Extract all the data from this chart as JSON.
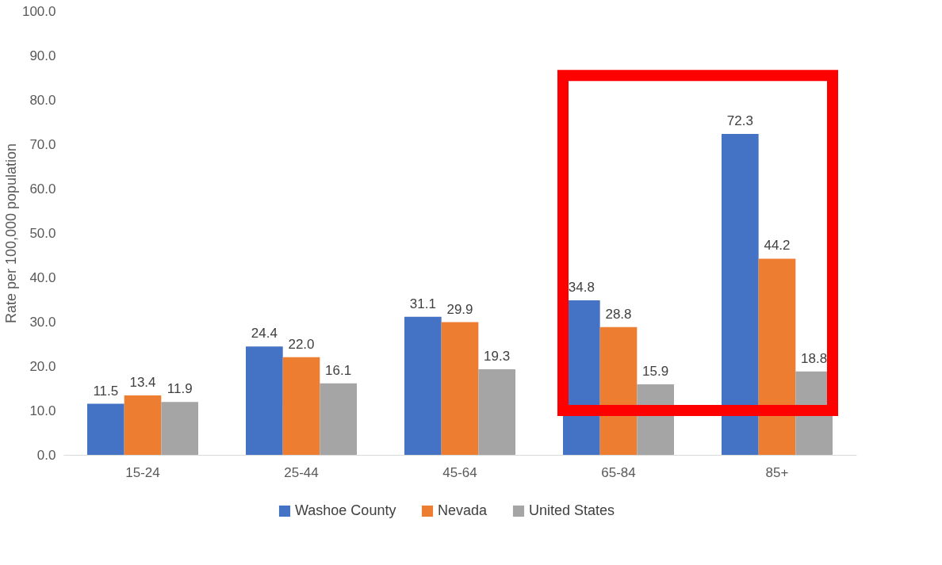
{
  "chart_data": {
    "type": "bar",
    "ylabel": "Rate per 100,000 population",
    "categories": [
      "15-24",
      "25-44",
      "45-64",
      "65-84",
      "85+"
    ],
    "series": [
      {
        "name": "Washoe County",
        "color": "#4472c4",
        "values": [
          11.5,
          24.4,
          31.1,
          34.8,
          72.3
        ]
      },
      {
        "name": "Nevada",
        "color": "#ed7d31",
        "values": [
          13.4,
          22.0,
          29.9,
          28.8,
          44.2
        ]
      },
      {
        "name": "United States",
        "color": "#a5a5a5",
        "values": [
          11.9,
          16.1,
          19.3,
          15.9,
          18.8
        ]
      }
    ],
    "ylim": [
      0,
      100
    ],
    "yticks": [
      {
        "value": 0,
        "label": "0.0"
      },
      {
        "value": 10,
        "label": "10.0"
      },
      {
        "value": 20,
        "label": "20.0"
      },
      {
        "value": 30,
        "label": "30.0"
      },
      {
        "value": 40,
        "label": "40.0"
      },
      {
        "value": 50,
        "label": "50.0"
      },
      {
        "value": 60,
        "label": "60.0"
      },
      {
        "value": 70,
        "label": "70.0"
      },
      {
        "value": 80,
        "label": "80.0"
      },
      {
        "value": 90,
        "label": "90.0"
      },
      {
        "value": 100,
        "label": "100.0"
      }
    ],
    "value_labels": [
      [
        "11.5",
        "24.4",
        "31.1",
        "34.8",
        "72.3"
      ],
      [
        "13.4",
        "22.0",
        "29.9",
        "28.8",
        "44.2"
      ],
      [
        "11.9",
        "16.1",
        "19.3",
        "15.9",
        "18.8"
      ]
    ],
    "grid": false,
    "legend": "bottom"
  }
}
